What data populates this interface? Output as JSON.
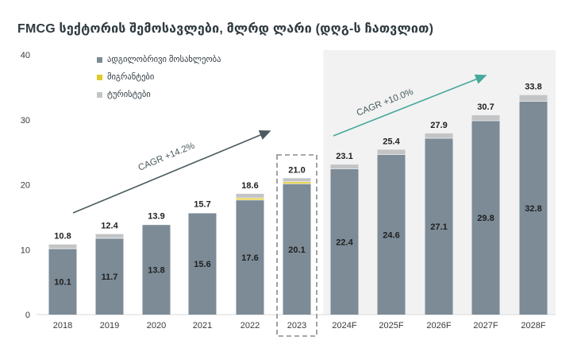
{
  "title": "FMCG სექტორის შემოსავლები, მლრდ ლარი (დღგ-ს ჩათვლით)",
  "colors": {
    "local": "#7c8b96",
    "migrants": "#e2c92a",
    "tourists": "#c2c4c6",
    "axis_text": "#3a3a3a",
    "arrow": "#4a5a60",
    "arrow_forecast": "#46a99a",
    "forecast_bg": "#f2f2f2"
  },
  "chart_data": {
    "type": "bar",
    "stacked": true,
    "categories": [
      "2018",
      "2019",
      "2020",
      "2021",
      "2022",
      "2023",
      "2024F",
      "2025F",
      "2026F",
      "2027F",
      "2028F"
    ],
    "series": [
      {
        "name": "ადგილობრივი მოსახლეობა",
        "values": [
          10.1,
          11.7,
          13.8,
          15.6,
          17.6,
          20.1,
          22.4,
          24.6,
          27.1,
          29.8,
          32.8
        ]
      },
      {
        "name": "მიგრანტები",
        "values": [
          0,
          0,
          0,
          0,
          0.3,
          0.3,
          0,
          0,
          0,
          0,
          0
        ]
      },
      {
        "name": "ტურისტები",
        "values": [
          0.7,
          0.7,
          0.1,
          0.1,
          0.7,
          0.6,
          0.7,
          0.8,
          0.8,
          0.9,
          1.0
        ]
      }
    ],
    "totals": [
      "10.8",
      "12.4",
      "13.9",
      "15.7",
      "18.6",
      "21.0",
      "23.1",
      "25.4",
      "27.9",
      "30.7",
      "33.8"
    ],
    "inner_labels": [
      "10.1",
      "11.7",
      "13.8",
      "15.6",
      "17.6",
      "20.1",
      "22.4",
      "24.6",
      "27.1",
      "29.8",
      "32.8"
    ],
    "yticks": [
      "0",
      "10",
      "20",
      "30",
      "40"
    ],
    "ylim": [
      0,
      40
    ],
    "highlighted_category": "2023",
    "forecast_from_index": 6,
    "annotations": [
      {
        "text": "CAGR +14.2%",
        "from_index": 0,
        "to_index": 5
      },
      {
        "text": "CAGR +10.0%",
        "from_index": 6,
        "to_index": 10
      }
    ]
  }
}
